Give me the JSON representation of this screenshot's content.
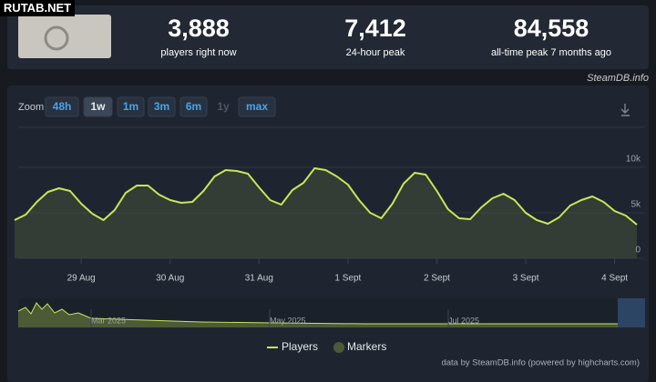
{
  "watermark": "RUTAB.NET",
  "stats": [
    {
      "value": "3,888",
      "label": "players right now"
    },
    {
      "value": "7,412",
      "label": "24-hour peak"
    },
    {
      "value": "84,558",
      "label": "all-time peak 7 months ago"
    }
  ],
  "source": "SteamDB.info",
  "zoom": {
    "label": "Zoom",
    "buttons": [
      "48h",
      "1w",
      "1m",
      "3m",
      "6m",
      "1y",
      "max"
    ]
  },
  "navigator": {
    "labels": [
      "Mar 2025",
      "May 2025",
      "Jul 2025"
    ]
  },
  "credit": "data by SteamDB.info (powered by highcharts.com)",
  "chart_data": {
    "type": "line",
    "categories": [
      null,
      null,
      null,
      null,
      null,
      null,
      "29 Aug",
      null,
      null,
      null,
      null,
      null,
      null,
      null,
      "30 Aug",
      null,
      null,
      null,
      null,
      null,
      null,
      null,
      "31 Aug",
      null,
      null,
      null,
      null,
      null,
      null,
      null,
      "1 Sept",
      null,
      null,
      null,
      null,
      null,
      null,
      null,
      "2 Sept",
      null,
      null,
      null,
      null,
      null,
      null,
      null,
      "3 Sept",
      null,
      null,
      null,
      null,
      null,
      null,
      null,
      "4 Sept",
      null,
      null
    ],
    "series": [
      {
        "name": "Players",
        "color": "#c5e858",
        "values": [
          4200,
          4800,
          6200,
          7300,
          7700,
          7400,
          6000,
          4900,
          4200,
          5300,
          7200,
          8000,
          8000,
          7000,
          6400,
          6100,
          6200,
          7400,
          9000,
          9700,
          9600,
          9300,
          7800,
          6400,
          5900,
          7500,
          8300,
          9900,
          9700,
          9000,
          8100,
          6400,
          5000,
          4400,
          6000,
          8200,
          9400,
          9200,
          7400,
          5400,
          4400,
          4300,
          5600,
          6600,
          7100,
          6400,
          5000,
          4200,
          3800,
          4500,
          5800,
          6400,
          6800,
          6200,
          5200,
          4700,
          3700
        ]
      }
    ],
    "legend_extra": [
      {
        "name": "Markers",
        "color": "#4d5a36"
      }
    ],
    "ylim": [
      0,
      14000
    ],
    "yticks": [
      0,
      {
        "value": 5000,
        "label": "5k"
      },
      {
        "value": 10000,
        "label": "10k"
      }
    ],
    "grid": true
  }
}
